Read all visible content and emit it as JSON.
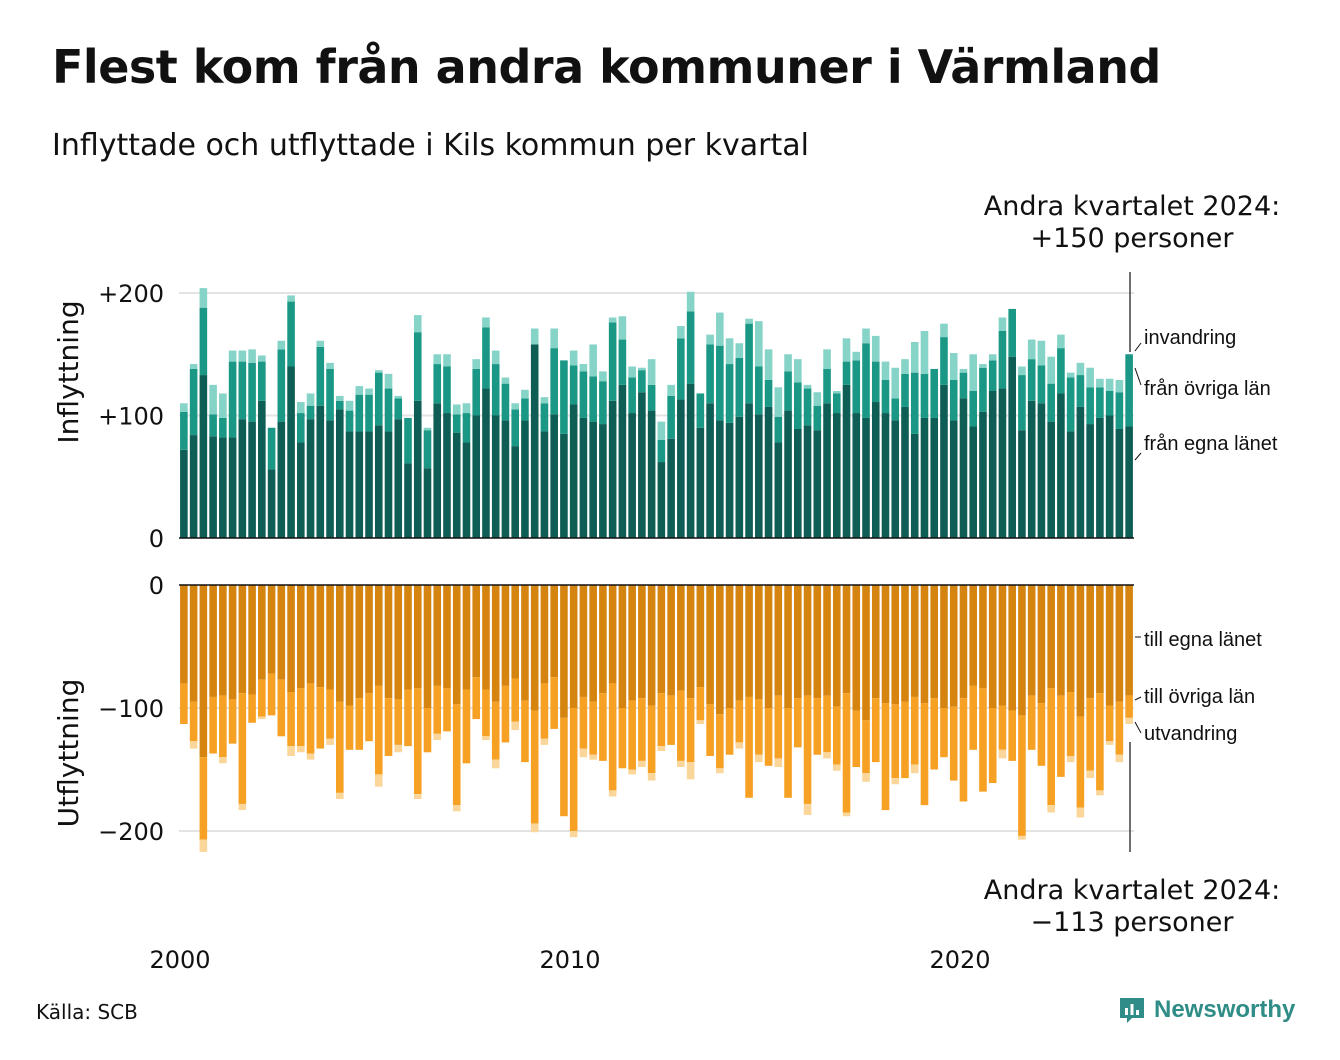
{
  "title": "Flest kom från andra kommuner i Värmland",
  "subtitle": "Inflyttade och utflyttade i Kils kommun per kvartal",
  "source": "Källa: SCB",
  "brand": "Newsworthy",
  "colors": {
    "in_egna": "#0f5e55",
    "in_ovriga": "#1a9885",
    "in_invandring": "#86d3c8",
    "out_egna": "#d58410",
    "out_ovriga": "#f6a124",
    "out_utvandring": "#fbd69b",
    "grid": "#e3e3e3",
    "brand": "#2f8c86"
  },
  "chart_data": {
    "type": "bar",
    "stacked": true,
    "x_start": "2000 Q1",
    "x_end": "2024 Q2",
    "x_ticks": [
      "2000",
      "2010",
      "2020"
    ],
    "top_panel": {
      "ylabel": "Inflyttning",
      "y_ticks": [
        "+200",
        "+100",
        "0"
      ],
      "ylim": [
        0,
        200
      ],
      "annotation_lines": [
        "Andra kvartalet 2024:",
        "+150 personer"
      ],
      "series": [
        {
          "name": "från egna länet",
          "values": [
            72,
            84,
            133,
            83,
            82,
            82,
            97,
            95,
            112,
            56,
            95,
            140,
            78,
            97,
            108,
            96,
            105,
            87,
            87,
            87,
            92,
            87,
            97,
            61,
            112,
            57,
            110,
            102,
            86,
            78,
            100,
            122,
            100,
            96,
            75,
            96,
            158,
            87,
            101,
            85,
            109,
            98,
            95,
            93,
            112,
            125,
            102,
            119,
            104,
            62,
            81,
            113,
            126,
            90,
            110,
            96,
            94,
            99,
            110,
            101,
            107,
            78,
            104,
            89,
            92,
            88,
            110,
            102,
            125,
            102,
            98,
            111,
            102,
            96,
            107,
            85,
            98,
            98,
            125,
            96,
            114,
            91,
            103,
            120,
            122,
            148,
            88,
            112,
            110,
            95,
            118,
            87,
            107,
            93,
            98,
            100,
            89,
            91
          ]
        },
        {
          "name": "från övriga län",
          "values": [
            31,
            54,
            55,
            18,
            16,
            62,
            47,
            48,
            32,
            34,
            59,
            53,
            24,
            11,
            48,
            42,
            7,
            17,
            30,
            30,
            43,
            35,
            17,
            37,
            56,
            31,
            32,
            38,
            15,
            24,
            38,
            50,
            42,
            30,
            30,
            18,
            0,
            23,
            54,
            60,
            32,
            38,
            37,
            35,
            64,
            37,
            29,
            18,
            21,
            18,
            35,
            50,
            59,
            28,
            48,
            61,
            48,
            48,
            65,
            39,
            22,
            21,
            32,
            38,
            30,
            20,
            28,
            16,
            19,
            43,
            61,
            33,
            27,
            18,
            27,
            50,
            36,
            40,
            39,
            33,
            21,
            29,
            36,
            25,
            47,
            39,
            45,
            34,
            31,
            31,
            37,
            44,
            26,
            30,
            25,
            20,
            30,
            59
          ]
        },
        {
          "name": "invandring",
          "values": [
            7,
            4,
            16,
            24,
            20,
            9,
            9,
            11,
            5,
            0,
            7,
            5,
            9,
            10,
            5,
            5,
            4,
            8,
            7,
            5,
            2,
            12,
            2,
            0,
            14,
            2,
            8,
            10,
            8,
            8,
            8,
            8,
            11,
            5,
            5,
            7,
            13,
            5,
            16,
            0,
            12,
            6,
            26,
            8,
            4,
            19,
            9,
            2,
            21,
            15,
            9,
            10,
            16,
            0,
            8,
            27,
            21,
            12,
            4,
            37,
            25,
            24,
            14,
            19,
            3,
            11,
            16,
            2,
            19,
            7,
            12,
            21,
            15,
            25,
            12,
            25,
            35,
            0,
            11,
            22,
            3,
            30,
            3,
            5,
            11,
            0,
            7,
            16,
            20,
            22,
            11,
            4,
            10,
            16,
            7,
            10,
            10,
            0
          ]
        }
      ]
    },
    "bottom_panel": {
      "ylabel": "Utflyttning",
      "y_ticks": [
        "0",
        "−100",
        "−200"
      ],
      "ylim": [
        -200,
        0
      ],
      "annotation_lines": [
        "Andra kvartalet 2024:",
        "−113 personer"
      ],
      "series": [
        {
          "name": "till egna länet",
          "values": [
            80,
            95,
            140,
            91,
            90,
            93,
            88,
            89,
            77,
            72,
            77,
            87,
            84,
            80,
            83,
            85,
            95,
            98,
            92,
            88,
            82,
            92,
            93,
            85,
            84,
            100,
            82,
            84,
            97,
            85,
            75,
            85,
            95,
            82,
            76,
            94,
            102,
            80,
            75,
            108,
            100,
            91,
            95,
            88,
            80,
            100,
            94,
            92,
            98,
            88,
            90,
            86,
            92,
            83,
            97,
            105,
            100,
            94,
            91,
            93,
            100,
            90,
            100,
            92,
            90,
            92,
            90,
            99,
            88,
            102,
            110,
            92,
            96,
            97,
            95,
            91,
            96,
            92,
            100,
            99,
            92,
            82,
            84,
            100,
            98,
            102,
            106,
            90,
            96,
            84,
            90,
            87,
            107,
            92,
            88,
            98,
            95,
            90
          ]
        },
        {
          "name": "till övriga län",
          "values": [
            33,
            32,
            67,
            46,
            50,
            36,
            90,
            23,
            30,
            34,
            46,
            44,
            47,
            57,
            50,
            40,
            74,
            36,
            42,
            39,
            72,
            47,
            37,
            46,
            86,
            36,
            39,
            35,
            82,
            60,
            34,
            38,
            47,
            46,
            35,
            50,
            92,
            45,
            42,
            80,
            100,
            42,
            43,
            55,
            87,
            49,
            56,
            51,
            55,
            43,
            40,
            57,
            52,
            27,
            42,
            44,
            38,
            34,
            82,
            45,
            47,
            51,
            73,
            40,
            88,
            46,
            46,
            47,
            97,
            46,
            43,
            52,
            87,
            60,
            62,
            55,
            83,
            58,
            40,
            60,
            84,
            52,
            84,
            61,
            36,
            41,
            98,
            44,
            51,
            95,
            66,
            52,
            74,
            59,
            79,
            29,
            43,
            18
          ]
        },
        {
          "name": "utvandring",
          "values": [
            0,
            6,
            10,
            0,
            5,
            0,
            5,
            0,
            2,
            0,
            0,
            8,
            5,
            5,
            0,
            5,
            5,
            0,
            0,
            0,
            10,
            0,
            6,
            0,
            4,
            0,
            5,
            0,
            5,
            0,
            0,
            3,
            7,
            0,
            7,
            0,
            7,
            5,
            0,
            0,
            5,
            7,
            4,
            0,
            5,
            0,
            4,
            5,
            6,
            4,
            0,
            5,
            14,
            3,
            0,
            4,
            0,
            5,
            0,
            6,
            0,
            7,
            0,
            0,
            9,
            0,
            5,
            5,
            3,
            0,
            7,
            0,
            0,
            5,
            0,
            7,
            0,
            0,
            0,
            0,
            0,
            0,
            0,
            0,
            7,
            0,
            3,
            0,
            0,
            6,
            0,
            5,
            8,
            6,
            4,
            3,
            6,
            5
          ]
        }
      ]
    }
  }
}
